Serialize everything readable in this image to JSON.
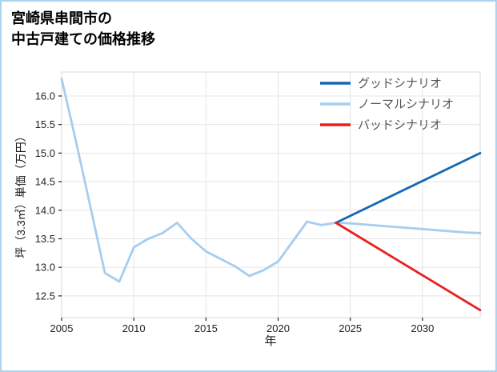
{
  "chart_data": {
    "type": "line",
    "title": "宮崎県串間市の中古戸建ての価格推移",
    "title_lines": [
      "宮崎県串間市の",
      "中古戸建ての価格推移"
    ],
    "xlabel": "年",
    "ylabel": "坪（3.3㎡）単価（万円）",
    "xlim": [
      2005,
      2034
    ],
    "ylim": [
      12.12,
      16.42
    ],
    "xticks": [
      2005,
      2010,
      2015,
      2020,
      2025,
      2030
    ],
    "yticks": [
      12.5,
      13.0,
      13.5,
      14.0,
      14.5,
      15.0,
      15.5,
      16.0
    ],
    "grid": true,
    "legend_position": "top-right",
    "draw_order": [
      1,
      0,
      2
    ],
    "series": [
      {
        "name": "グッドシナリオ",
        "color": "#1568b3",
        "x": [
          2024,
          2034
        ],
        "y": [
          13.78,
          15.0
        ]
      },
      {
        "name": "ノーマルシナリオ",
        "color": "#a6cdf0",
        "x": [
          2005,
          2006,
          2007,
          2008,
          2009,
          2010,
          2011,
          2012,
          2013,
          2014,
          2015,
          2016,
          2017,
          2018,
          2019,
          2020,
          2021,
          2022,
          2023,
          2024,
          2025,
          2026,
          2027,
          2028,
          2029,
          2030,
          2031,
          2032,
          2033,
          2034
        ],
        "y": [
          16.3,
          15.2,
          14.05,
          12.9,
          12.75,
          13.35,
          13.5,
          13.6,
          13.78,
          13.5,
          13.28,
          13.15,
          13.02,
          12.85,
          12.95,
          13.1,
          13.45,
          13.8,
          13.74,
          13.78,
          13.77,
          13.75,
          13.73,
          13.71,
          13.69,
          13.67,
          13.65,
          13.63,
          13.61,
          13.6
        ]
      },
      {
        "name": "バッドシナリオ",
        "color": "#e91e1e",
        "x": [
          2024,
          2034
        ],
        "y": [
          13.78,
          12.25
        ]
      }
    ]
  },
  "style": {
    "frame_border": "#aad4f0",
    "grid_color": "#e4e4e4",
    "spine_color": "#d8d8d8",
    "tick_color": "#222222",
    "tick_label_color": "#222222",
    "legend_text_color": "#555555",
    "title_color": "#000000"
  }
}
